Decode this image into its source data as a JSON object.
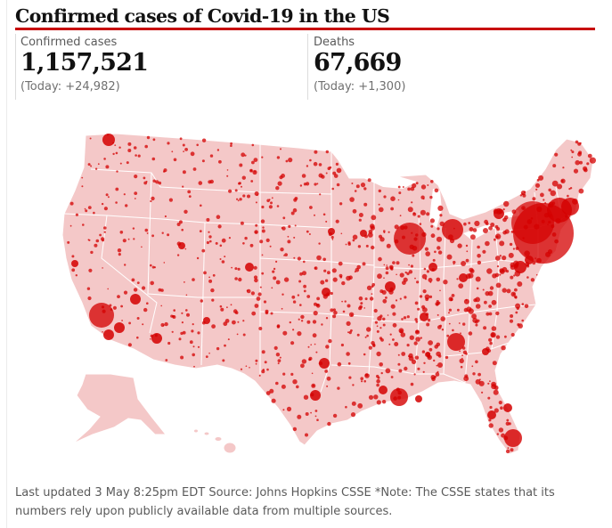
{
  "title": "Confirmed cases of Covid-19 in the US",
  "stats": {
    "cases": {
      "label": "Confirmed cases",
      "value": "1,157,521",
      "today": "(Today: +24,982)"
    },
    "deaths": {
      "label": "Deaths",
      "value": "67,669",
      "today": "(Today: +1,300)"
    }
  },
  "map": {
    "region": "United States",
    "land_color": "#f4c8c8",
    "border_color": "#ffffff",
    "bubble_color": "#d40000"
  },
  "footnote": "Last updated 3 May 8:25pm EDT Source: Johns Hopkins CSSE *Note: The CSSE states that its numbers rely upon publicly available data from multiple sources."
}
